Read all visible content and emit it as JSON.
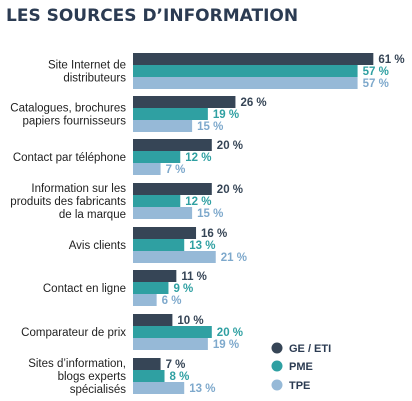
{
  "chart_data": {
    "type": "bar",
    "orientation": "horizontal",
    "title": "LES SOURCES D’INFORMATION",
    "categories": [
      [
        "Site Internet de",
        "distributeurs"
      ],
      [
        "Catalogues, brochures",
        "papiers fournisseurs"
      ],
      [
        "Contact par téléphone"
      ],
      [
        "Information sur les",
        "produits des fabricants",
        "de la marque"
      ],
      [
        "Avis clients"
      ],
      [
        "Contact en ligne"
      ],
      [
        "Comparateur de prix"
      ],
      [
        "Sites d’information,",
        "blogs experts",
        "spécialisés"
      ]
    ],
    "series": [
      {
        "name": "GE / ETI",
        "color": "#364556",
        "values": [
          61,
          26,
          20,
          20,
          16,
          11,
          10,
          7
        ]
      },
      {
        "name": "PME",
        "color": "#2fa0a2",
        "values": [
          57,
          19,
          12,
          12,
          13,
          9,
          20,
          8
        ]
      },
      {
        "name": "TPE",
        "color": "#96b9d7",
        "values": [
          57,
          15,
          7,
          15,
          21,
          6,
          19,
          13
        ]
      }
    ],
    "value_suffix": " %",
    "legend_position": "bottom-right",
    "grid": false
  }
}
